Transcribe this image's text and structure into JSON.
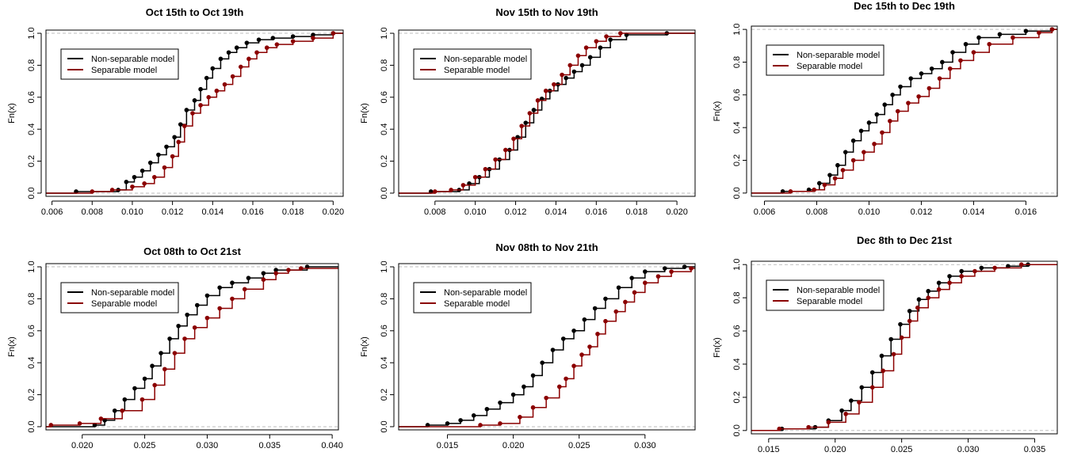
{
  "colors": {
    "non_separable": "#000000",
    "separable": "#8b0000",
    "reference": "#bdbdbd"
  },
  "chart_data": [
    {
      "type": "line",
      "title": "Oct 15th to Oct 19th",
      "xlabel": "",
      "ylabel": "Fn(x)",
      "xlim": [
        0.0057,
        0.0205
      ],
      "ylim": [
        -0.02,
        1.02
      ],
      "xticks": [
        "0.006",
        "0.008",
        "0.010",
        "0.012",
        "0.014",
        "0.016",
        "0.018",
        "0.020"
      ],
      "xtick_values": [
        0.006,
        0.008,
        0.01,
        0.012,
        0.014,
        0.016,
        0.018,
        0.02
      ],
      "yticks": [
        "0.0",
        "0.2",
        "0.4",
        "0.6",
        "0.8",
        "1.0"
      ],
      "ytick_values": [
        0,
        0.2,
        0.4,
        0.6,
        0.8,
        1.0
      ],
      "legend": {
        "position": "top-left",
        "entries": [
          "Non-separable model",
          "Separable model"
        ]
      },
      "series": [
        {
          "name": "Non-separable model",
          "color": "#000000",
          "x": [
            0.0072,
            0.0093,
            0.0097,
            0.0101,
            0.0105,
            0.0109,
            0.0113,
            0.0117,
            0.0121,
            0.0124,
            0.0127,
            0.0131,
            0.0134,
            0.0137,
            0.014,
            0.0144,
            0.0148,
            0.0152,
            0.0157,
            0.0163,
            0.017,
            0.018,
            0.019,
            0.02
          ],
          "y": [
            0.01,
            0.02,
            0.07,
            0.1,
            0.14,
            0.19,
            0.24,
            0.29,
            0.35,
            0.43,
            0.52,
            0.58,
            0.65,
            0.72,
            0.78,
            0.84,
            0.88,
            0.91,
            0.94,
            0.96,
            0.97,
            0.98,
            0.99,
            1.0
          ]
        },
        {
          "name": "Separable model",
          "color": "#8b0000",
          "x": [
            0.008,
            0.009,
            0.01,
            0.0106,
            0.0111,
            0.0116,
            0.012,
            0.0123,
            0.0126,
            0.013,
            0.0134,
            0.0138,
            0.0142,
            0.0146,
            0.015,
            0.0154,
            0.0158,
            0.0162,
            0.0167,
            0.0172,
            0.018,
            0.019,
            0.02
          ],
          "y": [
            0.01,
            0.02,
            0.04,
            0.06,
            0.1,
            0.16,
            0.23,
            0.32,
            0.42,
            0.5,
            0.55,
            0.6,
            0.64,
            0.68,
            0.73,
            0.79,
            0.84,
            0.88,
            0.91,
            0.93,
            0.95,
            0.97,
            1.0
          ]
        }
      ]
    },
    {
      "type": "line",
      "title": "Nov 15th to Nov 19th",
      "xlabel": "",
      "ylabel": "Fn(x)",
      "xlim": [
        0.0062,
        0.0209
      ],
      "ylim": [
        -0.02,
        1.02
      ],
      "xticks": [
        "0.008",
        "0.010",
        "0.012",
        "0.014",
        "0.016",
        "0.018",
        "0.020"
      ],
      "xtick_values": [
        0.008,
        0.01,
        0.012,
        0.014,
        0.016,
        0.018,
        0.02
      ],
      "yticks": [
        "0.0",
        "0.2",
        "0.4",
        "0.6",
        "0.8",
        "1.0"
      ],
      "ytick_values": [
        0,
        0.2,
        0.4,
        0.6,
        0.8,
        1.0
      ],
      "legend": {
        "position": "top-left",
        "entries": [
          "Non-separable model",
          "Separable model"
        ]
      },
      "series": [
        {
          "name": "Non-separable model",
          "color": "#000000",
          "x": [
            0.0078,
            0.0092,
            0.0097,
            0.0102,
            0.0107,
            0.0112,
            0.0117,
            0.0121,
            0.0125,
            0.0129,
            0.0133,
            0.0137,
            0.0141,
            0.0145,
            0.0149,
            0.0153,
            0.0157,
            0.0162,
            0.0167,
            0.0175,
            0.0195
          ],
          "y": [
            0.01,
            0.02,
            0.06,
            0.1,
            0.15,
            0.21,
            0.27,
            0.35,
            0.44,
            0.52,
            0.59,
            0.64,
            0.68,
            0.72,
            0.76,
            0.8,
            0.85,
            0.91,
            0.96,
            0.99,
            1.0
          ]
        },
        {
          "name": "Separable model",
          "color": "#8b0000",
          "x": [
            0.008,
            0.0088,
            0.0094,
            0.01,
            0.0105,
            0.011,
            0.0115,
            0.0119,
            0.0123,
            0.0127,
            0.0131,
            0.0135,
            0.0139,
            0.0143,
            0.0147,
            0.0151,
            0.0155,
            0.016,
            0.0165,
            0.0172
          ],
          "y": [
            0.01,
            0.02,
            0.05,
            0.1,
            0.15,
            0.21,
            0.27,
            0.34,
            0.42,
            0.5,
            0.58,
            0.64,
            0.68,
            0.74,
            0.8,
            0.86,
            0.91,
            0.95,
            0.98,
            1.0
          ]
        }
      ]
    },
    {
      "type": "line",
      "title": "Dec 15th to Dec 19th",
      "xlabel": "",
      "ylabel": "Fn(x)",
      "xlim": [
        0.0055,
        0.0172
      ],
      "ylim": [
        -0.02,
        1.02
      ],
      "xticks": [
        "0.006",
        "0.008",
        "0.010",
        "0.012",
        "0.014",
        "0.016"
      ],
      "xtick_values": [
        0.006,
        0.008,
        0.01,
        0.012,
        0.014,
        0.016
      ],
      "yticks": [
        "0.0",
        "0.2",
        "0.4",
        "0.6",
        "0.8",
        "1.0"
      ],
      "ytick_values": [
        0,
        0.2,
        0.4,
        0.6,
        0.8,
        1.0
      ],
      "legend": {
        "position": "top-left",
        "entries": [
          "Non-separable model",
          "Separable model"
        ]
      },
      "series": [
        {
          "name": "Non-separable model",
          "color": "#000000",
          "x": [
            0.0067,
            0.0077,
            0.0081,
            0.0085,
            0.0088,
            0.0091,
            0.0094,
            0.0097,
            0.01,
            0.0103,
            0.0106,
            0.0109,
            0.0112,
            0.0116,
            0.012,
            0.0124,
            0.0128,
            0.0132,
            0.0137,
            0.0142,
            0.015,
            0.016,
            0.017
          ],
          "y": [
            0.01,
            0.02,
            0.06,
            0.11,
            0.17,
            0.25,
            0.32,
            0.38,
            0.43,
            0.48,
            0.54,
            0.6,
            0.65,
            0.7,
            0.73,
            0.76,
            0.8,
            0.86,
            0.91,
            0.95,
            0.97,
            0.99,
            1.0
          ]
        },
        {
          "name": "Separable model",
          "color": "#8b0000",
          "x": [
            0.007,
            0.0079,
            0.0083,
            0.0087,
            0.009,
            0.0094,
            0.0098,
            0.0102,
            0.0105,
            0.0108,
            0.0111,
            0.0115,
            0.0119,
            0.0123,
            0.0127,
            0.0131,
            0.0135,
            0.014,
            0.0146,
            0.0155,
            0.0165,
            0.017
          ],
          "y": [
            0.01,
            0.02,
            0.05,
            0.09,
            0.14,
            0.2,
            0.25,
            0.3,
            0.37,
            0.44,
            0.5,
            0.55,
            0.59,
            0.64,
            0.7,
            0.76,
            0.81,
            0.86,
            0.91,
            0.95,
            0.98,
            1.0
          ]
        }
      ]
    },
    {
      "type": "line",
      "title": "Oct 08th to Oct 21st",
      "xlabel": "",
      "ylabel": "Fn(x)",
      "xlim": [
        0.0171,
        0.0405
      ],
      "ylim": [
        -0.02,
        1.02
      ],
      "xticks": [
        "0.020",
        "0.025",
        "0.030",
        "0.035",
        "0.040"
      ],
      "xtick_values": [
        0.02,
        0.025,
        0.03,
        0.035,
        0.04
      ],
      "yticks": [
        "0.0",
        "0.2",
        "0.4",
        "0.6",
        "0.8",
        "1.0"
      ],
      "ytick_values": [
        0,
        0.2,
        0.4,
        0.6,
        0.8,
        1.0
      ],
      "legend": {
        "position": "top-left",
        "entries": [
          "Non-separable model",
          "Separable model"
        ]
      },
      "series": [
        {
          "name": "Non-separable model",
          "color": "#000000",
          "x": [
            0.021,
            0.0218,
            0.0226,
            0.0234,
            0.0242,
            0.025,
            0.0256,
            0.0263,
            0.027,
            0.0277,
            0.0284,
            0.0292,
            0.03,
            0.031,
            0.032,
            0.0333,
            0.0345,
            0.0355,
            0.038
          ],
          "y": [
            0.01,
            0.04,
            0.1,
            0.17,
            0.24,
            0.3,
            0.38,
            0.46,
            0.55,
            0.63,
            0.7,
            0.76,
            0.82,
            0.87,
            0.9,
            0.93,
            0.96,
            0.98,
            1.0
          ]
        },
        {
          "name": "Separable model",
          "color": "#8b0000",
          "x": [
            0.0175,
            0.0198,
            0.0215,
            0.0232,
            0.0248,
            0.0258,
            0.0266,
            0.0274,
            0.0282,
            0.029,
            0.03,
            0.031,
            0.032,
            0.033,
            0.0345,
            0.0355,
            0.0365,
            0.0375
          ],
          "y": [
            0.01,
            0.02,
            0.05,
            0.1,
            0.17,
            0.26,
            0.36,
            0.46,
            0.55,
            0.62,
            0.68,
            0.74,
            0.8,
            0.86,
            0.92,
            0.96,
            0.98,
            0.99
          ]
        }
      ]
    },
    {
      "type": "line",
      "title": "Nov 08th to Nov 21th",
      "xlabel": "",
      "ylabel": "Fn(x)",
      "xlim": [
        0.0113,
        0.0338
      ],
      "ylim": [
        -0.02,
        1.02
      ],
      "xticks": [
        "0.015",
        "0.020",
        "0.025",
        "0.030"
      ],
      "xtick_values": [
        0.015,
        0.02,
        0.025,
        0.03
      ],
      "yticks": [
        "0.0",
        "0.2",
        "0.4",
        "0.6",
        "0.8",
        "1.0"
      ],
      "ytick_values": [
        0,
        0.2,
        0.4,
        0.6,
        0.8,
        1.0
      ],
      "legend": {
        "position": "top-left",
        "entries": [
          "Non-separable model",
          "Separable model"
        ]
      },
      "series": [
        {
          "name": "Non-separable model",
          "color": "#000000",
          "x": [
            0.0135,
            0.015,
            0.016,
            0.017,
            0.018,
            0.019,
            0.02,
            0.0208,
            0.0215,
            0.0222,
            0.023,
            0.0238,
            0.0246,
            0.0254,
            0.0262,
            0.027,
            0.028,
            0.029,
            0.03,
            0.0315,
            0.033
          ],
          "y": [
            0.01,
            0.02,
            0.04,
            0.07,
            0.11,
            0.15,
            0.2,
            0.25,
            0.32,
            0.4,
            0.48,
            0.55,
            0.6,
            0.67,
            0.74,
            0.8,
            0.87,
            0.93,
            0.97,
            0.99,
            1.0
          ]
        },
        {
          "name": "Separable model",
          "color": "#8b0000",
          "x": [
            0.0175,
            0.019,
            0.0205,
            0.0215,
            0.0225,
            0.0235,
            0.024,
            0.0246,
            0.0252,
            0.0258,
            0.0264,
            0.027,
            0.0278,
            0.0285,
            0.0292,
            0.03,
            0.031,
            0.032,
            0.0335
          ],
          "y": [
            0.01,
            0.02,
            0.06,
            0.12,
            0.18,
            0.25,
            0.3,
            0.38,
            0.45,
            0.5,
            0.58,
            0.66,
            0.72,
            0.78,
            0.84,
            0.9,
            0.94,
            0.97,
            0.99
          ]
        }
      ]
    },
    {
      "type": "line",
      "title": "Dec 8th to Dec 21st",
      "xlabel": "",
      "ylabel": "Fn(x)",
      "xlim": [
        0.0137,
        0.0367
      ],
      "ylim": [
        -0.02,
        1.02
      ],
      "xticks": [
        "0.015",
        "0.020",
        "0.025",
        "0.030",
        "0.035"
      ],
      "xtick_values": [
        0.015,
        0.02,
        0.025,
        0.03,
        0.035
      ],
      "yticks": [
        "0.0",
        "0.2",
        "0.4",
        "0.6",
        "0.8",
        "1.0"
      ],
      "ytick_values": [
        0,
        0.2,
        0.4,
        0.6,
        0.8,
        1.0
      ],
      "legend": {
        "position": "top-left",
        "entries": [
          "Non-separable model",
          "Separable model"
        ]
      },
      "series": [
        {
          "name": "Non-separable model",
          "color": "#000000",
          "x": [
            0.016,
            0.0185,
            0.0195,
            0.0205,
            0.0212,
            0.022,
            0.0228,
            0.0235,
            0.0242,
            0.0249,
            0.0256,
            0.0263,
            0.027,
            0.0278,
            0.0286,
            0.0295,
            0.031,
            0.033,
            0.0345
          ],
          "y": [
            0.01,
            0.02,
            0.06,
            0.12,
            0.18,
            0.26,
            0.35,
            0.45,
            0.55,
            0.64,
            0.72,
            0.79,
            0.84,
            0.89,
            0.93,
            0.96,
            0.98,
            0.99,
            1.0
          ]
        },
        {
          "name": "Separable model",
          "color": "#8b0000",
          "x": [
            0.0158,
            0.018,
            0.0195,
            0.0208,
            0.0218,
            0.0228,
            0.0236,
            0.0244,
            0.025,
            0.0256,
            0.0262,
            0.027,
            0.0278,
            0.0286,
            0.0295,
            0.0305,
            0.032,
            0.034
          ],
          "y": [
            0.01,
            0.02,
            0.05,
            0.1,
            0.17,
            0.26,
            0.36,
            0.46,
            0.56,
            0.66,
            0.74,
            0.8,
            0.85,
            0.89,
            0.93,
            0.96,
            0.98,
            1.0
          ]
        }
      ]
    }
  ]
}
